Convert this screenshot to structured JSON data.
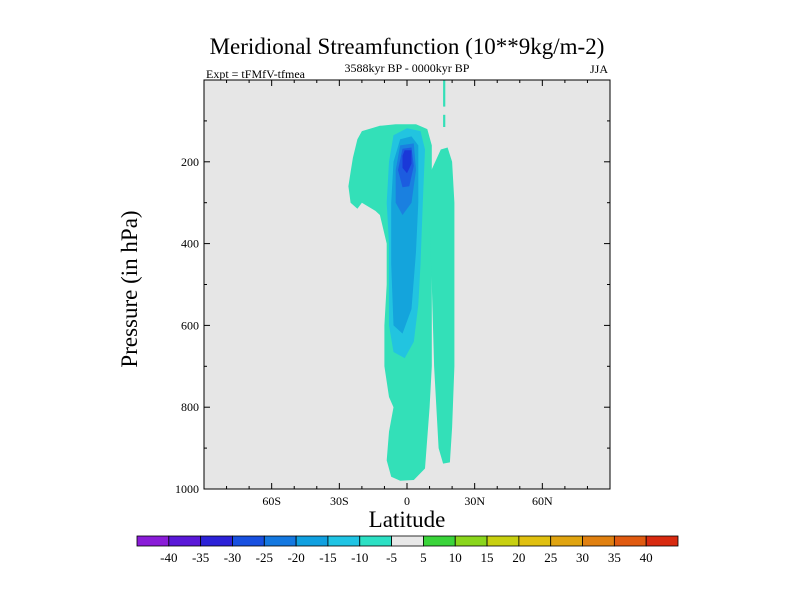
{
  "chart_data": {
    "type": "contour",
    "title": "Meridional Streamfunction (10**9kg/m-2)",
    "left_string": "Expt = tFMfV-tfmea",
    "center_string": "3588kyr BP - 0000kyr BP",
    "right_string": "JJA",
    "xlabel": "Latitude",
    "ylabel": "Pressure (in hPa)",
    "xlim": [
      -90,
      90
    ],
    "ylim": [
      1000,
      0
    ],
    "x_ticks": [
      {
        "value": -60,
        "label": "60S"
      },
      {
        "value": -30,
        "label": "30S"
      },
      {
        "value": 0,
        "label": "0"
      },
      {
        "value": 30,
        "label": "30N"
      },
      {
        "value": 60,
        "label": "60N"
      }
    ],
    "y_ticks": [
      {
        "value": 200,
        "label": "200"
      },
      {
        "value": 400,
        "label": "400"
      },
      {
        "value": 600,
        "label": "600"
      },
      {
        "value": 800,
        "label": "800"
      },
      {
        "value": 1000,
        "label": "1000"
      }
    ],
    "background_color": "#e6e6e6",
    "regions": [
      {
        "name": "outer-negative-cell",
        "level": -5,
        "color": "#33e0b8",
        "points": [
          [
            -22,
            145
          ],
          [
            -20,
            125
          ],
          [
            -12,
            112
          ],
          [
            -5,
            108
          ],
          [
            4,
            108
          ],
          [
            9,
            120
          ],
          [
            11,
            160
          ],
          [
            11,
            300
          ],
          [
            11,
            500
          ],
          [
            11,
            700
          ],
          [
            10,
            800
          ],
          [
            8,
            950
          ],
          [
            3,
            978
          ],
          [
            -3,
            980
          ],
          [
            -7,
            970
          ],
          [
            -9,
            930
          ],
          [
            -8,
            860
          ],
          [
            -6,
            800
          ],
          [
            -8,
            775
          ],
          [
            -10,
            700
          ],
          [
            -10,
            600
          ],
          [
            -9,
            500
          ],
          [
            -9,
            400
          ],
          [
            -12,
            330
          ],
          [
            -14,
            320
          ],
          [
            -20,
            300
          ],
          [
            -22,
            315
          ],
          [
            -25,
            300
          ],
          [
            -26,
            260
          ],
          [
            -25,
            225
          ],
          [
            -24,
            190
          ]
        ]
      },
      {
        "name": "positive-strip-edge",
        "level": -5,
        "color": "#33e0b8",
        "points": [
          [
            10,
            230
          ],
          [
            15,
            170
          ],
          [
            18,
            165
          ],
          [
            20,
            200
          ],
          [
            21,
            300
          ],
          [
            21,
            500
          ],
          [
            21,
            700
          ],
          [
            20,
            850
          ],
          [
            19,
            935
          ],
          [
            16,
            938
          ],
          [
            14,
            900
          ],
          [
            12,
            700
          ],
          [
            11,
            500
          ],
          [
            10,
            350
          ]
        ]
      },
      {
        "name": "upper-thin-strip",
        "level": -5,
        "color": "#33e0b8",
        "points": [
          [
            16,
            0
          ],
          [
            17,
            0
          ],
          [
            17,
            65
          ],
          [
            16,
            65
          ]
        ]
      },
      {
        "name": "upper-thin-dash",
        "level": -5,
        "color": "#33e0b8",
        "points": [
          [
            16,
            85
          ],
          [
            17,
            85
          ],
          [
            17,
            115
          ],
          [
            16,
            115
          ]
        ]
      },
      {
        "name": "level-minus-10",
        "level": -10,
        "color": "#22c4e0",
        "points": [
          [
            -6,
            135
          ],
          [
            0,
            118
          ],
          [
            6,
            125
          ],
          [
            8,
            170
          ],
          [
            7,
            300
          ],
          [
            6,
            450
          ],
          [
            5,
            550
          ],
          [
            3,
            640
          ],
          [
            -1,
            680
          ],
          [
            -6,
            665
          ],
          [
            -8,
            600
          ],
          [
            -8,
            400
          ],
          [
            -9,
            300
          ],
          [
            -8,
            200
          ]
        ]
      },
      {
        "name": "level-minus-15",
        "level": -15,
        "color": "#14a4dc",
        "points": [
          [
            -3,
            145
          ],
          [
            2,
            138
          ],
          [
            5,
            160
          ],
          [
            5,
            300
          ],
          [
            4,
            420
          ],
          [
            2,
            560
          ],
          [
            -2,
            620
          ],
          [
            -6,
            600
          ],
          [
            -7,
            450
          ],
          [
            -7,
            300
          ],
          [
            -6,
            200
          ]
        ]
      },
      {
        "name": "level-minus-20",
        "level": -20,
        "color": "#1a80e0",
        "points": [
          [
            -3,
            160
          ],
          [
            3,
            155
          ],
          [
            4,
            220
          ],
          [
            2,
            300
          ],
          [
            -2,
            330
          ],
          [
            -5,
            300
          ],
          [
            -5,
            220
          ]
        ]
      },
      {
        "name": "level-minus-25",
        "level": -25,
        "color": "#1c5ce0",
        "points": [
          [
            -2,
            168
          ],
          [
            2,
            165
          ],
          [
            3,
            210
          ],
          [
            1,
            260
          ],
          [
            -2,
            262
          ],
          [
            -4,
            220
          ]
        ]
      },
      {
        "name": "level-minus-30",
        "level": -30,
        "color": "#1a38d8",
        "points": [
          [
            -1,
            172
          ],
          [
            2,
            172
          ],
          [
            2,
            205
          ],
          [
            0,
            228
          ],
          [
            -2,
            215
          ],
          [
            -2,
            185
          ]
        ]
      }
    ],
    "colorbar": {
      "levels": [
        -40,
        -35,
        -30,
        -25,
        -20,
        -15,
        -10,
        -5,
        5,
        10,
        15,
        20,
        25,
        30,
        35,
        40
      ],
      "labels": [
        "-40",
        "-35",
        "-30",
        "-25",
        "-20",
        "-15",
        "-10",
        "-5",
        "5",
        "10",
        "15",
        "20",
        "25",
        "30",
        "35",
        "40"
      ],
      "colors": [
        "#8a1cd8",
        "#5a18d8",
        "#2c22d8",
        "#1850e0",
        "#1478e0",
        "#10a0e0",
        "#20c4e4",
        "#2ce0c4",
        "#e8e8e8",
        "#3ad43a",
        "#8ad61c",
        "#c8d010",
        "#e0c010",
        "#e0a410",
        "#e08010",
        "#e05a10",
        "#d82a10"
      ]
    }
  }
}
